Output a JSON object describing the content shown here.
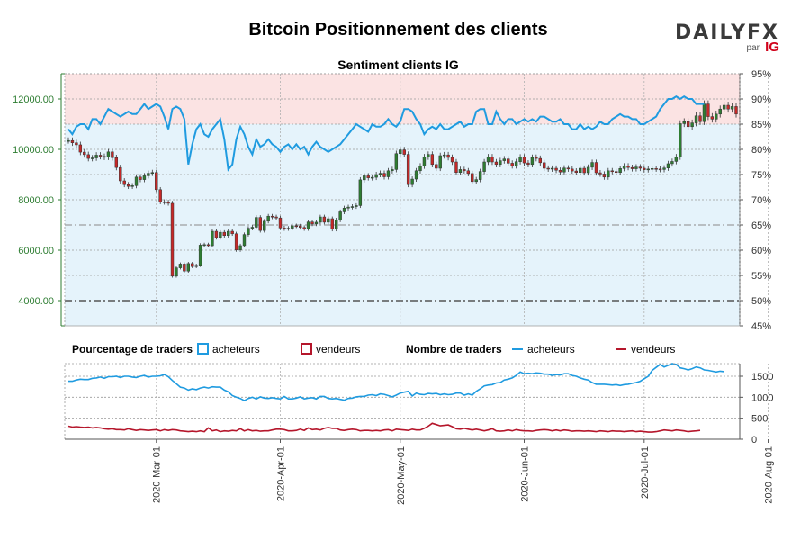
{
  "title": "Bitcoin Positionnement des clients",
  "subtitle": "Sentiment clients IG",
  "brand": {
    "name": "DAILYFX",
    "by": "par",
    "partner": "IG"
  },
  "colors": {
    "long": "#1f9be0",
    "short": "#b5162b",
    "up_candle": "#2e7d32",
    "down_candle": "#c62828",
    "bg_top": "#fbe3e3",
    "bg_bottom": "#e5f3fb",
    "price_axis": "#2e7d32"
  },
  "legend": {
    "pct_title": "Pourcentage de traders",
    "pct_long": "acheteurs",
    "pct_short": "vendeurs",
    "count_title": "Nombre de traders",
    "count_long": "acheteurs",
    "count_short": "vendeurs"
  },
  "chart_data": {
    "type": "line",
    "x_date_labels": [
      "2020-Mar-01",
      "2020-Apr-01",
      "2020-May-01",
      "2020-Jun-01",
      "2020-Jul-01",
      "2020-Aug-01"
    ],
    "price_axis": {
      "ticks": [
        "4000.00",
        "6000.00",
        "8000.00",
        "10000.00",
        "12000.00"
      ],
      "ylim": [
        3000,
        13000
      ]
    },
    "pct_axis": {
      "ticks": [
        "45%",
        "50%",
        "55%",
        "60%",
        "65%",
        "70%",
        "75%",
        "80%",
        "85%",
        "90%",
        "95%"
      ],
      "ylim": [
        45,
        95
      ]
    },
    "count_axis": {
      "ticks": [
        "0",
        "500",
        "1000",
        "1500"
      ],
      "ylim": [
        0,
        1800
      ]
    },
    "start_date": "2020-02-08",
    "price_close": [
      10350,
      10260,
      10180,
      9890,
      9790,
      9640,
      9660,
      9770,
      9720,
      9690,
      9900,
      9670,
      9280,
      8750,
      8600,
      8530,
      8560,
      8900,
      8800,
      8950,
      9050,
      9080,
      8400,
      7920,
      7900,
      7860,
      4970,
      5300,
      5450,
      5170,
      5470,
      5350,
      5400,
      6200,
      6220,
      6180,
      6750,
      6500,
      6710,
      6580,
      6750,
      6650,
      6010,
      6180,
      6620,
      6870,
      6910,
      7300,
      6780,
      7150,
      7350,
      7320,
      7280,
      6880,
      6850,
      6870,
      6970,
      6960,
      6900,
      6850,
      7120,
      7040,
      7110,
      7320,
      7110,
      7250,
      6830,
      7200,
      7520,
      7670,
      7710,
      7730,
      7770,
      8790,
      8950,
      8870,
      8890,
      9000,
      9050,
      8910,
      9150,
      9200,
      9830,
      9980,
      9800,
      8600,
      8820,
      9150,
      9340,
      9700,
      9800,
      9400,
      9250,
      9750,
      9780,
      9680,
      9500,
      9080,
      9200,
      9150,
      9040,
      8720,
      8800,
      9120,
      9500,
      9700,
      9500,
      9400,
      9550,
      9620,
      9450,
      9350,
      9510,
      9690,
      9460,
      9400,
      9680,
      9640,
      9470,
      9250,
      9220,
      9250,
      9170,
      9100,
      9260,
      9220,
      9140,
      9080,
      9250,
      9070,
      9290,
      9480,
      9070,
      9020,
      8900,
      9150,
      9120,
      9080,
      9240,
      9340,
      9280,
      9230,
      9300,
      9250,
      9190,
      9220,
      9240,
      9220,
      9200,
      9260,
      9430,
      9520,
      9700,
      11020,
      11100,
      10900,
      11050,
      11330,
      11100,
      11800,
      11300,
      11200,
      11400,
      11600,
      11750,
      11600,
      11700,
      11400
    ],
    "long_pct": [
      84,
      83,
      84.5,
      85,
      85,
      84,
      86,
      86,
      85,
      86.5,
      88,
      87.5,
      87,
      86.5,
      87,
      87.5,
      87,
      87,
      88,
      89,
      88,
      88.5,
      89,
      88.5,
      86.5,
      84,
      88,
      88.5,
      88,
      86,
      77,
      81,
      84,
      85,
      83,
      82.5,
      84,
      85,
      86,
      82,
      76,
      77,
      82,
      84.5,
      83,
      80.5,
      79,
      82,
      80.5,
      81,
      82,
      81,
      80.5,
      79.5,
      80.5,
      81,
      80,
      81,
      80,
      80.5,
      79,
      80.5,
      81.5,
      80.5,
      80,
      79.5,
      80,
      80.5,
      81,
      82,
      83,
      84,
      85,
      84.5,
      84,
      83.5,
      85,
      84.5,
      84.5,
      85,
      86,
      85,
      84.5,
      85.5,
      88,
      88,
      87.5,
      86,
      85,
      83,
      84,
      84.5,
      84,
      85,
      84,
      84,
      84.5,
      85,
      85.5,
      84.5,
      85,
      85,
      87.5,
      88,
      88,
      85,
      85,
      87.5,
      86,
      85,
      86,
      86,
      85,
      85.5,
      86,
      85.5,
      86,
      85.5,
      86.5,
      86.5,
      86,
      85.5,
      85.5,
      86,
      85,
      85,
      84,
      84,
      85,
      84,
      84.5,
      84,
      84.5,
      85.5,
      85,
      85,
      86,
      86.5,
      87,
      86.5,
      86.5,
      86,
      86,
      85,
      85,
      85.5,
      86,
      86.5,
      88,
      89,
      90,
      90,
      90.5,
      90,
      90.5,
      90,
      90,
      89,
      89,
      89
    ],
    "long_count": [
      1380,
      1380,
      1410,
      1430,
      1420,
      1420,
      1450,
      1460,
      1480,
      1450,
      1490,
      1490,
      1500,
      1470,
      1500,
      1500,
      1480,
      1470,
      1500,
      1520,
      1480,
      1500,
      1500,
      1510,
      1540,
      1490,
      1400,
      1320,
      1240,
      1220,
      1170,
      1200,
      1180,
      1220,
      1240,
      1220,
      1250,
      1240,
      1240,
      1170,
      1130,
      1040,
      1000,
      970,
      920,
      970,
      1000,
      960,
      1010,
      980,
      970,
      990,
      970,
      960,
      1020,
      960,
      960,
      980,
      1010,
      960,
      980,
      990,
      960,
      1020,
      1020,
      970,
      960,
      970,
      950,
      930,
      970,
      980,
      1010,
      1020,
      1020,
      1050,
      1060,
      1040,
      1080,
      1070,
      1040,
      1010,
      1050,
      1100,
      1120,
      1140,
      1030,
      1100,
      1070,
      1060,
      1090,
      1080,
      1090,
      1060,
      1080,
      1060,
      1070,
      1100,
      1100,
      1050,
      1080,
      1050,
      1140,
      1200,
      1270,
      1290,
      1300,
      1340,
      1350,
      1410,
      1430,
      1460,
      1520,
      1600,
      1560,
      1570,
      1560,
      1580,
      1570,
      1550,
      1550,
      1520,
      1540,
      1530,
      1560,
      1560,
      1520,
      1500,
      1460,
      1430,
      1410,
      1350,
      1310,
      1310,
      1310,
      1300,
      1290,
      1300,
      1280,
      1300,
      1310,
      1330,
      1350,
      1380,
      1440,
      1500,
      1640,
      1710,
      1780,
      1720,
      1760,
      1800,
      1780,
      1700,
      1680,
      1650,
      1680,
      1720,
      1700,
      1650,
      1640,
      1620,
      1600,
      1620,
      1610
    ],
    "short_count": [
      310,
      290,
      300,
      290,
      280,
      290,
      270,
      280,
      270,
      250,
      240,
      250,
      230,
      230,
      220,
      250,
      230,
      210,
      230,
      220,
      210,
      220,
      230,
      200,
      230,
      210,
      230,
      220,
      200,
      190,
      180,
      190,
      180,
      200,
      180,
      270,
      200,
      220,
      180,
      200,
      190,
      210,
      200,
      250,
      200,
      230,
      200,
      210,
      190,
      200,
      200,
      220,
      240,
      240,
      230,
      200,
      200,
      210,
      240,
      210,
      270,
      230,
      240,
      220,
      260,
      280,
      260,
      260,
      220,
      210,
      230,
      240,
      230,
      200,
      210,
      210,
      200,
      210,
      200,
      220,
      230,
      200,
      240,
      230,
      220,
      210,
      240,
      220,
      220,
      260,
      310,
      380,
      350,
      320,
      330,
      340,
      300,
      250,
      240,
      260,
      240,
      220,
      240,
      220,
      200,
      220,
      250,
      200,
      190,
      200,
      220,
      200,
      230,
      210,
      200,
      200,
      190,
      210,
      220,
      230,
      220,
      200,
      220,
      200,
      220,
      210,
      190,
      200,
      200,
      190,
      200,
      190,
      180,
      200,
      190,
      180,
      200,
      190,
      190,
      180,
      190,
      200,
      180,
      190,
      180,
      170,
      170,
      180,
      200,
      220,
      210,
      200,
      220,
      210,
      200,
      180,
      190,
      200,
      210
    ]
  }
}
